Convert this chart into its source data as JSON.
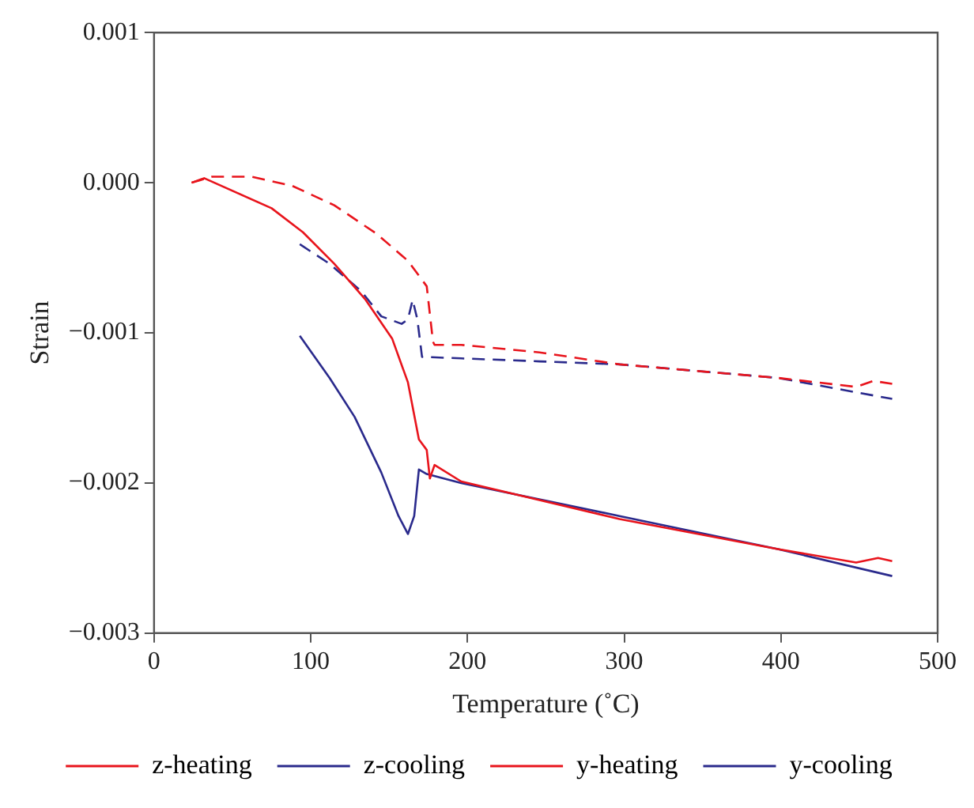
{
  "chart_data": {
    "type": "line",
    "xlabel": "Temperature (˚C)",
    "ylabel": "Strain",
    "xlim": [
      0,
      500
    ],
    "xticks": [
      0,
      100,
      200,
      300,
      400,
      500
    ],
    "ylim": [
      -0.003,
      0.001
    ],
    "yticks": [
      {
        "value": 0.001,
        "label": "0.001"
      },
      {
        "value": 0,
        "label": "0.000"
      },
      {
        "value": -0.001,
        "label": "−0.001"
      },
      {
        "value": -0.002,
        "label": "−0.002"
      },
      {
        "value": -0.003,
        "label": "−0.003"
      }
    ],
    "grid": false,
    "legend": "bottom",
    "marker": "none",
    "series": [
      {
        "name": "z-heating",
        "color": "#e8141c",
        "line_style": "solid",
        "x": [
          24,
          32,
          75,
          95,
          115,
          135,
          152,
          162,
          169,
          174,
          176,
          179,
          196,
          297,
          398,
          448,
          462,
          471
        ],
        "values": [
          0,
          3e-05,
          -0.00017,
          -0.00033,
          -0.00054,
          -0.00078,
          -0.00104,
          -0.00133,
          -0.00171,
          -0.00178,
          -0.00197,
          -0.00188,
          -0.00199,
          -0.00224,
          -0.00244,
          -0.00253,
          -0.0025,
          -0.00252
        ]
      },
      {
        "name": "z-cooling",
        "color": "#2a2a8c",
        "line_style": "solid",
        "x": [
          93,
          112,
          128,
          145,
          156,
          162,
          166,
          169,
          174,
          196,
          297,
          398,
          471
        ],
        "values": [
          -0.00102,
          -0.0013,
          -0.00156,
          -0.00193,
          -0.00222,
          -0.00234,
          -0.00222,
          -0.00191,
          -0.00194,
          -0.002,
          -0.00222,
          -0.00244,
          -0.00262
        ]
      },
      {
        "name": "y-heating",
        "color": "#e8141c",
        "line_style": "dashed",
        "x": [
          24,
          37,
          62,
          88,
          115,
          142,
          162,
          174,
          178,
          179,
          196,
          246,
          297,
          398,
          448,
          459,
          471
        ],
        "values": [
          0,
          4e-05,
          4e-05,
          -2e-05,
          -0.00015,
          -0.00034,
          -0.00052,
          -0.00069,
          -0.00106,
          -0.00108,
          -0.00108,
          -0.00113,
          -0.00121,
          -0.0013,
          -0.00136,
          -0.00132,
          -0.00134
        ]
      },
      {
        "name": "y-cooling",
        "color": "#2a2a8c",
        "line_style": "dashed",
        "x": [
          93,
          112,
          132,
          145,
          158,
          162,
          165,
          168,
          171,
          196,
          246,
          297,
          398,
          471
        ],
        "values": [
          -0.00041,
          -0.00054,
          -0.00072,
          -0.00089,
          -0.00094,
          -0.00091,
          -0.00078,
          -0.00091,
          -0.00116,
          -0.00117,
          -0.00119,
          -0.00121,
          -0.0013,
          -0.00144
        ]
      }
    ]
  }
}
